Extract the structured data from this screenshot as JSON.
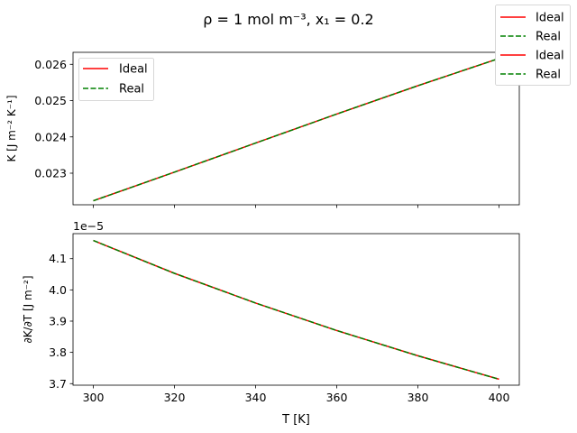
{
  "chart_data": {
    "type": "line",
    "suptitle": "ρ = 1 mol m⁻³, x₁ = 0.2",
    "figure_legend": [
      {
        "label": "Ideal",
        "color": "#ff0000",
        "style": "solid"
      },
      {
        "label": "Real",
        "color": "#008000",
        "style": "dashed"
      },
      {
        "label": "Ideal",
        "color": "#ff0000",
        "style": "solid"
      },
      {
        "label": "Real",
        "color": "#008000",
        "style": "dashed"
      }
    ],
    "xlabel": "T [K]",
    "xlim": [
      295,
      405
    ],
    "xticks": [
      300,
      320,
      340,
      360,
      380,
      400
    ],
    "subplots": [
      {
        "ylabel": "K [J m⁻² K⁻¹]",
        "ylim": [
          0.02213,
          0.02633
        ],
        "yticks": [
          0.023,
          0.024,
          0.025,
          0.026
        ],
        "ytick_labels": [
          "0.023",
          "0.024",
          "0.025",
          "0.026"
        ],
        "offset_label": "",
        "legend": [
          {
            "label": "Ideal",
            "color": "#ff0000",
            "style": "solid"
          },
          {
            "label": "Real",
            "color": "#008000",
            "style": "dashed"
          }
        ],
        "series": [
          {
            "name": "Ideal",
            "color": "#ff0000",
            "style": "solid",
            "x": [
              300,
              320,
              340,
              360,
              380,
              400
            ],
            "y": [
              0.02224,
              0.02303,
              0.02383,
              0.02463,
              0.02541,
              0.02616
            ]
          },
          {
            "name": "Real",
            "color": "#008000",
            "style": "dashed",
            "x": [
              300,
              320,
              340,
              360,
              380,
              400
            ],
            "y": [
              0.02224,
              0.02303,
              0.02383,
              0.02463,
              0.02541,
              0.02616
            ]
          }
        ]
      },
      {
        "ylabel": "∂K/∂T [J m⁻²]",
        "ylim": [
          3.695,
          4.18
        ],
        "yticks": [
          3.7,
          3.8,
          3.9,
          4.0,
          4.1
        ],
        "ytick_labels": [
          "3.7",
          "3.8",
          "3.9",
          "4.0",
          "4.1"
        ],
        "offset_label": "1e−5",
        "series": [
          {
            "name": "Ideal",
            "color": "#ff0000",
            "style": "solid",
            "x": [
              300,
              320,
              340,
              360,
              380,
              400
            ],
            "y": [
              4.158,
              4.053,
              3.958,
              3.87,
              3.789,
              3.714
            ]
          },
          {
            "name": "Real",
            "color": "#008000",
            "style": "dashed",
            "x": [
              300,
              320,
              340,
              360,
              380,
              400
            ],
            "y": [
              4.158,
              4.053,
              3.958,
              3.87,
              3.789,
              3.714
            ]
          }
        ]
      }
    ]
  }
}
